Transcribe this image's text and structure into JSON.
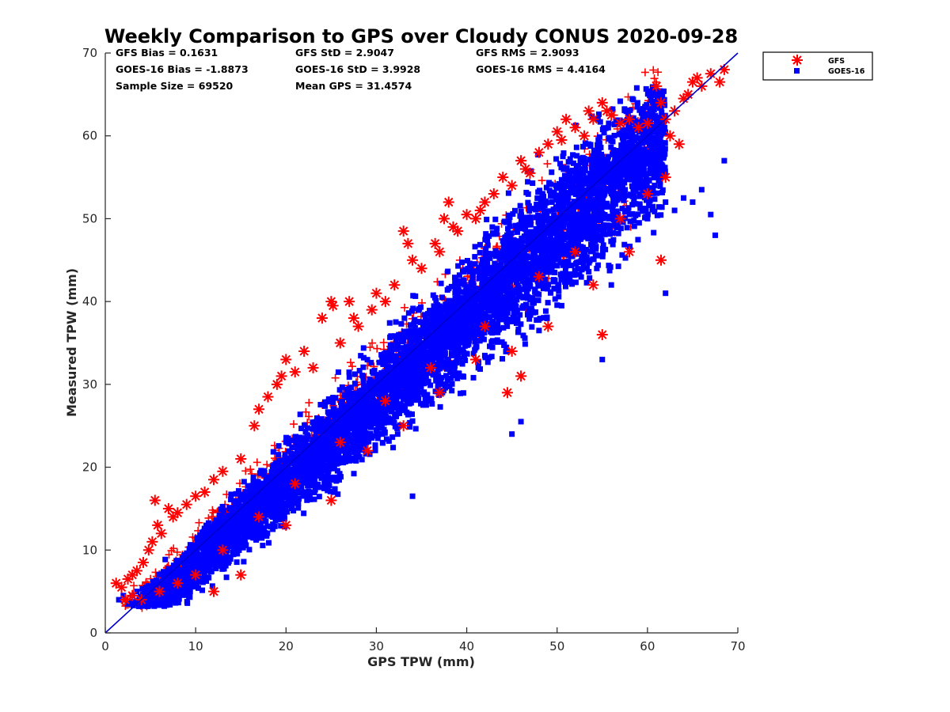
{
  "chart_data": {
    "type": "scatter",
    "title": "Weekly Comparison to GPS over Cloudy CONUS 2020-09-28",
    "xlabel": "GPS TPW (mm)",
    "ylabel": "Measured TPW (mm)",
    "xlim": [
      0,
      70
    ],
    "ylim": [
      0,
      70
    ],
    "xticks": [
      0,
      10,
      20,
      30,
      40,
      50,
      60,
      70
    ],
    "yticks": [
      0,
      10,
      20,
      30,
      40,
      50,
      60,
      70
    ],
    "grid": false,
    "legend_position": "outside-top-right",
    "one_to_one_line": true,
    "stats": [
      [
        "GFS Bias = 0.1631",
        "GFS StD = 2.9047",
        "GFS RMS = 2.9093"
      ],
      [
        "GOES-16 Bias = -1.8873",
        "GOES-16 StD = 3.9928",
        "GOES-16 RMS = 4.4164"
      ],
      [
        "Sample Size = 69520",
        "Mean GPS = 31.4574",
        ""
      ]
    ],
    "series": [
      {
        "name": "GFS",
        "marker": "asterisk",
        "color": "#ff0000",
        "x": [
          1.2,
          1.8,
          2.5,
          3.0,
          3.5,
          4.2,
          4.8,
          5.2,
          5.5,
          5.8,
          6.2,
          7.0,
          7.5,
          8.0,
          9.0,
          10.0,
          11.0,
          12.0,
          13.0,
          15.0,
          16.5,
          17.0,
          18.0,
          19.0,
          19.5,
          20.0,
          21.0,
          22.0,
          23.0,
          24.0,
          25.0,
          25.2,
          26.0,
          27.0,
          27.5,
          28.0,
          29.5,
          30.0,
          31.0,
          32.0,
          33.0,
          33.5,
          34.0,
          35.0,
          36.5,
          37.0,
          37.5,
          38.0,
          38.5,
          39.0,
          40.0,
          41.0,
          41.5,
          42.0,
          43.0,
          44.0,
          45.0,
          46.0,
          46.5,
          47.0,
          48.0,
          49.0,
          50.0,
          50.5,
          51.0,
          52.0,
          53.0,
          53.5,
          54.0,
          55.0,
          55.5,
          56.0,
          57.0,
          58.0,
          59.0,
          60.0,
          61.0,
          61.5,
          62.0,
          62.5,
          63.0,
          63.5,
          64.0,
          64.5,
          65.0,
          65.5,
          66.0,
          67.0,
          68.0,
          68.5,
          12.0,
          15.0,
          20.0,
          25.0,
          29.0,
          33.0,
          37.0,
          41.0,
          45.0,
          46.0,
          44.5,
          49.0,
          54.0,
          55.0,
          58.0,
          61.5,
          62.0,
          60.0,
          57.0,
          52.0,
          48.0,
          42.0,
          36.0,
          31.0,
          26.0,
          21.0,
          17.0,
          13.0,
          10.0,
          8.0,
          6.0,
          4.0,
          3.0,
          2.2
        ],
        "y": [
          6.0,
          5.5,
          6.5,
          7.0,
          7.5,
          8.5,
          10.0,
          11.0,
          16.0,
          13.0,
          12.0,
          15.0,
          14.0,
          14.5,
          15.5,
          16.5,
          17.0,
          18.5,
          19.5,
          21.0,
          25.0,
          27.0,
          28.5,
          30.0,
          31.0,
          33.0,
          31.5,
          34.0,
          32.0,
          38.0,
          40.0,
          39.5,
          35.0,
          40.0,
          38.0,
          37.0,
          39.0,
          41.0,
          40.0,
          42.0,
          48.5,
          47.0,
          45.0,
          44.0,
          47.0,
          46.0,
          50.0,
          52.0,
          49.0,
          48.5,
          50.5,
          50.0,
          51.0,
          52.0,
          53.0,
          55.0,
          54.0,
          57.0,
          56.0,
          55.5,
          58.0,
          59.0,
          60.5,
          59.5,
          62.0,
          61.0,
          60.0,
          63.0,
          62.0,
          64.0,
          63.0,
          62.5,
          61.5,
          62.0,
          61.0,
          61.5,
          66.0,
          64.0,
          62.0,
          60.0,
          63.0,
          59.0,
          64.5,
          65.0,
          66.5,
          67.0,
          66.0,
          67.5,
          66.5,
          68.0,
          5.0,
          7.0,
          13.0,
          16.0,
          22.0,
          25.0,
          29.0,
          33.0,
          34.0,
          31.0,
          29.0,
          37.0,
          42.0,
          36.0,
          46.0,
          45.0,
          55.0,
          53.0,
          50.0,
          46.0,
          43.0,
          37.0,
          32.0,
          28.0,
          23.0,
          18.0,
          14.0,
          10.0,
          7.0,
          6.0,
          5.0,
          4.0,
          4.5,
          4.0
        ]
      },
      {
        "name": "GOES-16",
        "marker": "square",
        "color": "#0000ff",
        "x": [
          1.5,
          2.0,
          2.5,
          3.0,
          3.5,
          4.0,
          4.5,
          5.0,
          5.5,
          6.0,
          6.5,
          7.0,
          7.5,
          8.0,
          8.5,
          9.0,
          9.5,
          10.0,
          10.5,
          11.0,
          11.5,
          12.0,
          12.5,
          13.0,
          13.5,
          14.0,
          14.5,
          15.0,
          15.5,
          16.0,
          16.5,
          17.0,
          17.5,
          18.0,
          18.5,
          19.0,
          19.5,
          20.0,
          20.5,
          21.0,
          21.5,
          22.0,
          22.5,
          23.0,
          23.5,
          24.0,
          24.5,
          25.0,
          25.5,
          26.0,
          26.5,
          27.0,
          27.5,
          28.0,
          28.5,
          29.0,
          29.5,
          30.0,
          30.5,
          31.0,
          31.5,
          32.0,
          32.5,
          33.0,
          33.5,
          34.0,
          34.5,
          35.0,
          35.5,
          36.0,
          36.5,
          37.0,
          37.5,
          38.0,
          38.5,
          39.0,
          39.5,
          40.0,
          40.5,
          41.0,
          41.5,
          42.0,
          42.5,
          43.0,
          43.5,
          44.0,
          44.5,
          45.0,
          45.5,
          46.0,
          46.5,
          47.0,
          47.5,
          48.0,
          48.5,
          49.0,
          49.5,
          50.0,
          50.5,
          51.0,
          51.5,
          52.0,
          52.5,
          53.0,
          53.5,
          54.0,
          54.5,
          55.0,
          55.5,
          56.0,
          56.5,
          57.0,
          57.5,
          58.0,
          58.5,
          59.0,
          59.5,
          60.0,
          60.5,
          61.0,
          62.0,
          63.0,
          64.0,
          65.0,
          66.0,
          67.0,
          67.5,
          68.5,
          45.0,
          46.0,
          55.0,
          34.0,
          30.0,
          48.0,
          50.5,
          56.0,
          60.0,
          62.0
        ],
        "y": [
          4.0,
          4.5,
          3.5,
          4.5,
          5.0,
          4.0,
          5.5,
          5.0,
          6.0,
          5.5,
          6.5,
          7.0,
          7.5,
          8.0,
          8.5,
          9.0,
          9.5,
          10.0,
          10.5,
          11.0,
          11.5,
          12.0,
          12.5,
          13.0,
          13.5,
          14.0,
          14.5,
          15.0,
          15.5,
          16.0,
          16.5,
          17.0,
          17.5,
          18.0,
          18.5,
          19.0,
          19.5,
          20.0,
          20.5,
          21.0,
          21.5,
          22.0,
          22.5,
          23.0,
          23.5,
          24.0,
          24.5,
          25.0,
          25.5,
          26.0,
          26.5,
          27.0,
          27.5,
          28.0,
          28.5,
          29.0,
          29.5,
          30.0,
          30.5,
          31.0,
          31.5,
          32.0,
          32.5,
          33.0,
          33.5,
          34.0,
          34.5,
          35.0,
          35.5,
          36.0,
          36.5,
          37.0,
          37.5,
          38.0,
          38.5,
          39.0,
          39.5,
          40.0,
          40.5,
          41.0,
          41.5,
          42.0,
          42.5,
          43.0,
          43.5,
          44.0,
          44.5,
          45.0,
          45.5,
          46.0,
          46.5,
          47.0,
          47.5,
          48.0,
          48.5,
          49.0,
          49.5,
          50.0,
          50.5,
          51.0,
          51.5,
          52.0,
          52.5,
          53.0,
          53.5,
          54.0,
          54.5,
          55.0,
          55.5,
          56.0,
          56.5,
          57.0,
          57.5,
          58.0,
          58.5,
          59.0,
          59.5,
          60.0,
          60.5,
          61.0,
          52.0,
          51.0,
          52.5,
          52.0,
          53.5,
          50.5,
          48.0,
          57.0,
          24.0,
          25.5,
          33.0,
          16.5,
          24.5,
          36.5,
          39.5,
          42.0,
          50.0,
          41.0
        ],
        "band_note": "dense cloud around 1:1 line"
      }
    ]
  }
}
